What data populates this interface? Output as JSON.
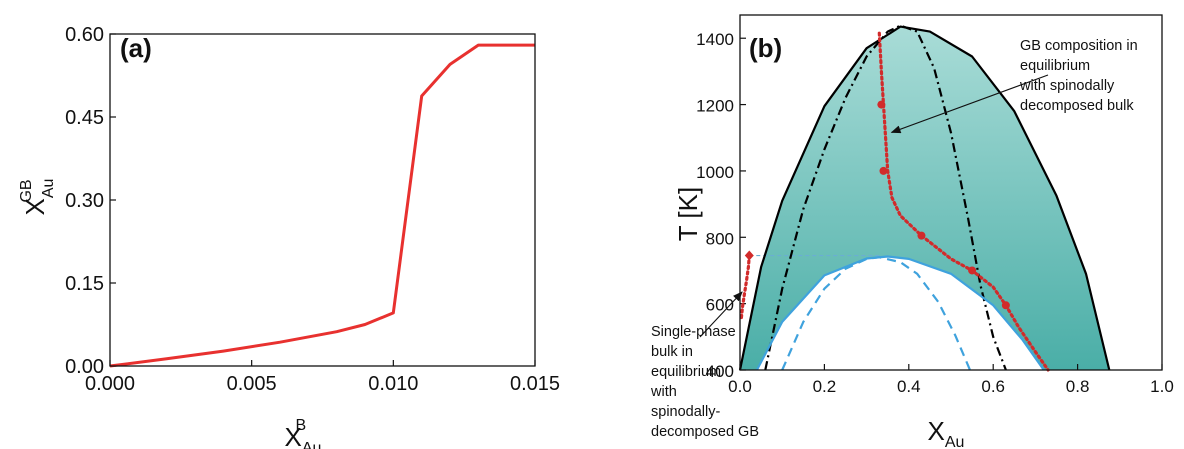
{
  "chart_data": [
    {
      "id": "a",
      "type": "line",
      "panel_label": "(a)",
      "xlabel": "X",
      "xlabel_sub": "Au",
      "xlabel_sup": "B",
      "ylabel": "X",
      "ylabel_sub": "Au",
      "ylabel_sup": "GB",
      "xlim": [
        0,
        0.015
      ],
      "ylim": [
        0,
        0.6
      ],
      "x_ticks": [
        "0.000",
        "0.005",
        "0.010",
        "0.015"
      ],
      "y_ticks": [
        "0.00",
        "0.15",
        "0.30",
        "0.45",
        "0.60"
      ],
      "series": [
        {
          "color": "#e8312f",
          "x": [
            0,
            0.002,
            0.004,
            0.006,
            0.008,
            0.009,
            0.01,
            0.011,
            0.012,
            0.013,
            0.014,
            0.015
          ],
          "y": [
            0,
            0.013,
            0.027,
            0.043,
            0.062,
            0.075,
            0.096,
            0.488,
            0.545,
            0.58,
            0.58,
            0.58
          ]
        }
      ]
    },
    {
      "id": "b",
      "type": "line",
      "panel_label": "(b)",
      "xlabel": "X",
      "xlabel_sub": "Au",
      "ylabel": "T [K]",
      "xlim": [
        0,
        1.0
      ],
      "ylim": [
        400,
        1470
      ],
      "x_ticks": [
        "0.0",
        "0.2",
        "0.4",
        "0.6",
        "0.8",
        "1.0"
      ],
      "y_ticks": [
        "400",
        "600",
        "800",
        "1000",
        "1200",
        "1400"
      ],
      "fill_colors": {
        "top": "#a9dcd7",
        "bottom": "#4aaea7"
      },
      "series": [
        {
          "role": "binodal",
          "color": "#000000",
          "style": "solid",
          "x": [
            0.0,
            0.05,
            0.1,
            0.2,
            0.3,
            0.38,
            0.45,
            0.55,
            0.65,
            0.75,
            0.82,
            0.875
          ],
          "y": [
            400,
            710,
            910,
            1195,
            1370,
            1435,
            1420,
            1345,
            1180,
            925,
            690,
            400
          ]
        },
        {
          "role": "spinodal",
          "color": "#000000",
          "style": "dash-dot",
          "x": [
            0.06,
            0.1,
            0.15,
            0.2,
            0.25,
            0.3,
            0.35,
            0.38,
            0.42,
            0.46,
            0.5,
            0.54,
            0.57,
            0.6,
            0.63
          ],
          "y": [
            400,
            645,
            885,
            1065,
            1220,
            1345,
            1420,
            1438,
            1420,
            1310,
            1115,
            860,
            655,
            500,
            400
          ]
        },
        {
          "role": "gb-binodal",
          "color": "#3fa2dd",
          "style": "solid",
          "x": [
            0.04,
            0.1,
            0.2,
            0.3,
            0.35,
            0.4,
            0.5,
            0.6,
            0.67,
            0.72
          ],
          "y": [
            400,
            545,
            685,
            736,
            742,
            735,
            690,
            595,
            490,
            400
          ]
        },
        {
          "role": "gb-spinodal",
          "color": "#3fa2dd",
          "style": "dashed",
          "x": [
            0.1,
            0.15,
            0.2,
            0.25,
            0.3,
            0.33,
            0.38,
            0.42,
            0.47,
            0.51,
            0.545
          ],
          "y": [
            400,
            545,
            645,
            705,
            735,
            740,
            725,
            690,
            605,
            505,
            400
          ]
        },
        {
          "role": "gb-composition-spinodally-decomposed",
          "color": "#d12b2b",
          "style": "dotted",
          "x": [
            0.33,
            0.335,
            0.34,
            0.345,
            0.35,
            0.36,
            0.38,
            0.43,
            0.5,
            0.55,
            0.6,
            0.63,
            0.66,
            0.7,
            0.73
          ],
          "y": [
            1415,
            1300,
            1200,
            1100,
            1000,
            920,
            865,
            805,
            735,
            700,
            650,
            595,
            530,
            455,
            400
          ]
        },
        {
          "role": "gb-composition-single-phase",
          "color": "#d12b2b",
          "style": "dotted",
          "x": [
            0.022,
            0.02,
            0.015,
            0.01,
            0.006,
            0.003
          ],
          "y": [
            745,
            710,
            665,
            625,
            590,
            555
          ]
        }
      ],
      "markers": [
        {
          "x": 0.335,
          "y": 1200,
          "color": "#d12b2b",
          "shape": "circle"
        },
        {
          "x": 0.34,
          "y": 1000,
          "color": "#d12b2b",
          "shape": "circle"
        },
        {
          "x": 0.43,
          "y": 805,
          "color": "#d12b2b",
          "shape": "circle"
        },
        {
          "x": 0.55,
          "y": 700,
          "color": "#d12b2b",
          "shape": "circle"
        },
        {
          "x": 0.63,
          "y": 595,
          "color": "#d12b2b",
          "shape": "circle"
        },
        {
          "x": 0.022,
          "y": 745,
          "color": "#d12b2b",
          "shape": "diamond"
        }
      ],
      "reference_lines": [
        {
          "y": 745,
          "x_from": 0.022,
          "x_to": 0.33,
          "color": "#6aaed3",
          "style": "dashed"
        }
      ],
      "annotations": [
        {
          "lines": [
            "GB composition in",
            "equilibrium",
            "with spinodally",
            "decomposed bulk"
          ],
          "arrow_to": {
            "x": 0.345,
            "y": 1110
          }
        },
        {
          "lines": [
            "Single-phase",
            "bulk in",
            "equilibrium",
            "with",
            "spinodally-",
            "decomposed GB"
          ],
          "arrow_to": {
            "x": 0.005,
            "y": 635
          }
        }
      ]
    }
  ]
}
